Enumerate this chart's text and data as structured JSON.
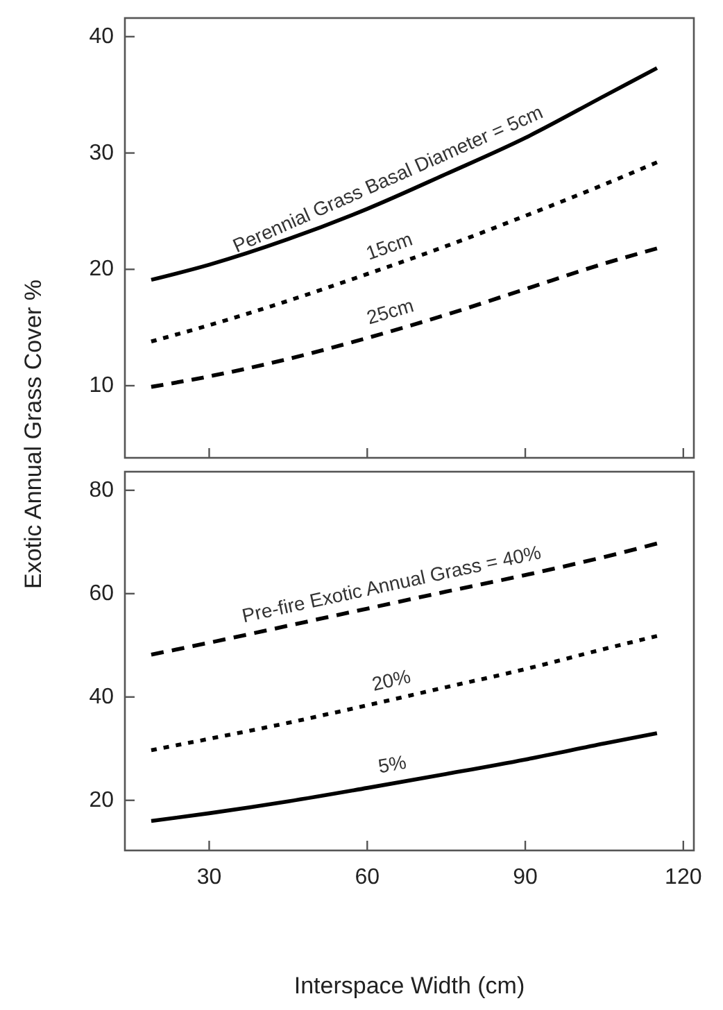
{
  "chart_data": [
    {
      "type": "line",
      "ylabel": "Exotic Annual Grass Cover %",
      "x": [
        19,
        30,
        45,
        60,
        75,
        90,
        105,
        115
      ],
      "xlim": [
        14,
        122
      ],
      "xticks": [
        {
          "value": 30,
          "label": null
        },
        {
          "value": 60,
          "label": null
        },
        {
          "value": 90,
          "label": null
        },
        {
          "value": 120,
          "label": null
        }
      ],
      "ylim": [
        3.8,
        41.6
      ],
      "yticks": [
        10,
        20,
        30,
        40
      ],
      "tick_labels": "y",
      "series": [
        {
          "color": "#000000",
          "line_style": "solid",
          "values": [
            19.1,
            20.4,
            22.6,
            25.2,
            28.2,
            31.3,
            34.9,
            37.3
          ]
        },
        {
          "color": "#000000",
          "line_style": "dotted",
          "values": [
            13.8,
            15.2,
            17.3,
            19.6,
            22.0,
            24.6,
            27.3,
            29.2
          ]
        },
        {
          "color": "#000000",
          "line_style": "dashed",
          "values": [
            9.9,
            10.8,
            12.3,
            14.1,
            16.1,
            18.3,
            20.5,
            21.8
          ]
        }
      ],
      "annotations": [
        "Perennial Grass Basal Diameter = 5cm",
        "15cm",
        "25cm"
      ]
    },
    {
      "type": "line",
      "xlabel": "Interspace Width (cm)",
      "x": [
        19,
        30,
        45,
        60,
        75,
        90,
        105,
        115
      ],
      "xlim": [
        14,
        122
      ],
      "xticks": [
        30,
        60,
        90,
        120
      ],
      "ylim": [
        10.3,
        83.6
      ],
      "yticks": [
        20,
        40,
        60,
        80
      ],
      "series": [
        {
          "color": "#000000",
          "line_style": "dashed",
          "values": [
            48.2,
            50.5,
            53.8,
            57.1,
            60.4,
            63.6,
            67.1,
            69.7
          ]
        },
        {
          "color": "#000000",
          "line_style": "dotted",
          "values": [
            29.7,
            31.9,
            35.0,
            38.4,
            41.9,
            45.4,
            49.3,
            51.8
          ]
        },
        {
          "color": "#000000",
          "line_style": "solid",
          "values": [
            16.0,
            17.5,
            19.8,
            22.4,
            25.1,
            27.9,
            31.0,
            33.0
          ]
        }
      ],
      "annotations": [
        "Pre-fire Exotic Annual Grass = 40%",
        "20%",
        "5%"
      ]
    }
  ]
}
